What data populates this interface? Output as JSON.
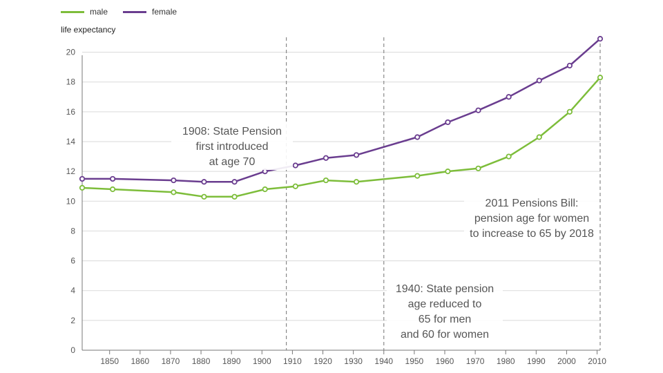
{
  "chart_data": {
    "type": "line",
    "ylabel": "life expectancy",
    "ylim": [
      0,
      21
    ],
    "yticks": [
      0,
      2,
      4,
      6,
      8,
      10,
      12,
      14,
      16,
      18,
      20
    ],
    "xlim": [
      1841,
      2011
    ],
    "xticks": [
      1850,
      1860,
      1870,
      1880,
      1890,
      1900,
      1910,
      1920,
      1930,
      1940,
      1950,
      1960,
      1970,
      1980,
      1990,
      2000,
      2010
    ],
    "grid": "horizontal",
    "legend": "top-left",
    "series": [
      {
        "name": "male",
        "color": "#7dbd3a",
        "x": [
          1841,
          1851,
          1871,
          1881,
          1891,
          1901,
          1911,
          1921,
          1931,
          1951,
          1961,
          1971,
          1981,
          1991,
          2001,
          2011
        ],
        "values": [
          10.9,
          10.8,
          10.6,
          10.3,
          10.3,
          10.8,
          11.0,
          11.4,
          11.3,
          11.7,
          12.0,
          12.2,
          13.0,
          14.3,
          16.0,
          18.3
        ]
      },
      {
        "name": "female",
        "color": "#6a3d8f",
        "x": [
          1841,
          1851,
          1871,
          1881,
          1891,
          1901,
          1911,
          1921,
          1931,
          1951,
          1961,
          1971,
          1981,
          1991,
          2001,
          2011
        ],
        "values": [
          11.5,
          11.5,
          11.4,
          11.3,
          11.3,
          12.0,
          12.4,
          12.9,
          13.1,
          14.3,
          15.3,
          16.1,
          17.0,
          18.1,
          19.1,
          20.9
        ]
      }
    ],
    "reference_lines": [
      1908,
      1940,
      2011
    ],
    "annotations": [
      {
        "lines": [
          "1908: State Pension",
          "first introduced",
          "at age 70"
        ]
      },
      {
        "lines": [
          "1940: State pension",
          "age reduced to",
          "65 for men",
          "and 60 for women"
        ]
      },
      {
        "lines": [
          "2011 Pensions Bill:",
          "pension age for women",
          "to increase to 65 by 2018"
        ]
      }
    ]
  }
}
